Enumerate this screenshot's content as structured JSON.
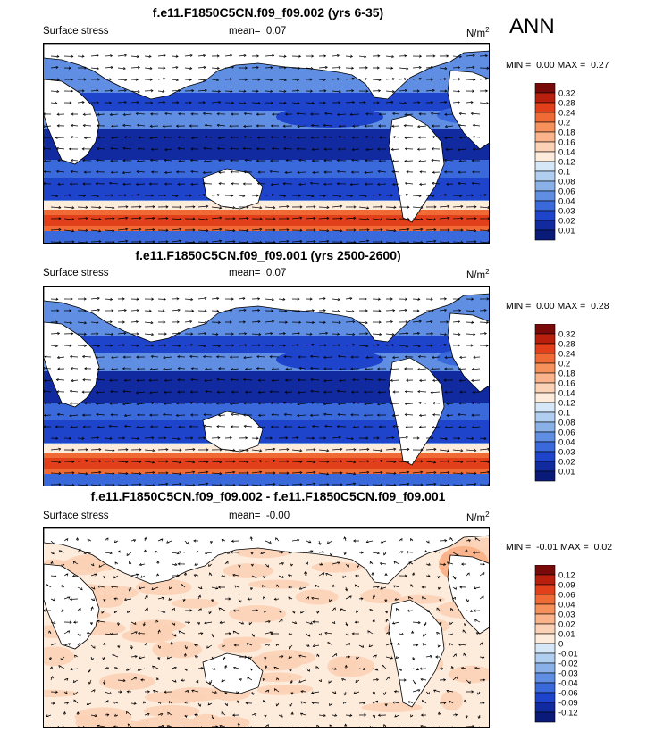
{
  "season": "ANN",
  "chart_data": [
    {
      "type": "vector-map",
      "title": "f.e11.F1850C5CN.f09_f09.002 (yrs 6-35)",
      "left_label": "Surface stress",
      "mean_label": "mean=",
      "mean_value": "0.07",
      "units": "N/m",
      "units_sup": "2",
      "min_label": "MIN =",
      "min_value": "0.00",
      "max_label": "MAX =",
      "max_value": "0.27",
      "colorbar_levels": [
        "0.32",
        "0.28",
        "0.24",
        "0.2",
        "0.18",
        "0.16",
        "0.14",
        "0.12",
        "0.1",
        "0.08",
        "0.06",
        "0.04",
        "0.03",
        "0.02",
        "0.01"
      ],
      "colorbar_colors": [
        "#7a0a0a",
        "#b8200d",
        "#e2401a",
        "#f06a35",
        "#f7915c",
        "#fab38a",
        "#fcd2b6",
        "#fdebdc",
        "#d6e8f7",
        "#b0ceef",
        "#89b1e8",
        "#5f8ee2",
        "#3a69dc",
        "#1f44cc",
        "#112aa0",
        "#0a1a78"
      ]
    },
    {
      "type": "vector-map",
      "title": "f.e11.F1850C5CN.f09_f09.001 (yrs 2500-2600)",
      "left_label": "Surface stress",
      "mean_label": "mean=",
      "mean_value": "0.07",
      "units": "N/m",
      "units_sup": "2",
      "min_label": "MIN =",
      "min_value": "0.00",
      "max_label": "MAX =",
      "max_value": "0.28",
      "colorbar_levels": [
        "0.32",
        "0.28",
        "0.24",
        "0.2",
        "0.18",
        "0.16",
        "0.14",
        "0.12",
        "0.1",
        "0.08",
        "0.06",
        "0.04",
        "0.03",
        "0.02",
        "0.01"
      ],
      "colorbar_colors": [
        "#7a0a0a",
        "#b8200d",
        "#e2401a",
        "#f06a35",
        "#f7915c",
        "#fab38a",
        "#fcd2b6",
        "#fdebdc",
        "#d6e8f7",
        "#b0ceef",
        "#89b1e8",
        "#5f8ee2",
        "#3a69dc",
        "#1f44cc",
        "#112aa0",
        "#0a1a78"
      ]
    },
    {
      "type": "vector-map",
      "title": "f.e11.F1850C5CN.f09_f09.002 - f.e11.F1850C5CN.f09_f09.001",
      "left_label": "Surface stress",
      "mean_label": "mean=",
      "mean_value": "-0.00",
      "units": "N/m",
      "units_sup": "2",
      "min_label": "MIN =",
      "min_value": "-0.01",
      "max_label": "MAX =",
      "max_value": "0.02",
      "colorbar_levels": [
        "0.12",
        "0.09",
        "0.06",
        "0.04",
        "0.03",
        "0.02",
        "0.01",
        "0",
        "-0.01",
        "-0.02",
        "-0.03",
        "-0.04",
        "-0.06",
        "-0.09",
        "-0.12"
      ],
      "colorbar_colors": [
        "#7a0a0a",
        "#b8200d",
        "#e2401a",
        "#f06a35",
        "#f7915c",
        "#fab38a",
        "#fcd2b6",
        "#fdebdc",
        "#d6e8f7",
        "#b0ceef",
        "#89b1e8",
        "#5f8ee2",
        "#3a69dc",
        "#1f44cc",
        "#112aa0",
        "#0a1a78"
      ]
    }
  ]
}
